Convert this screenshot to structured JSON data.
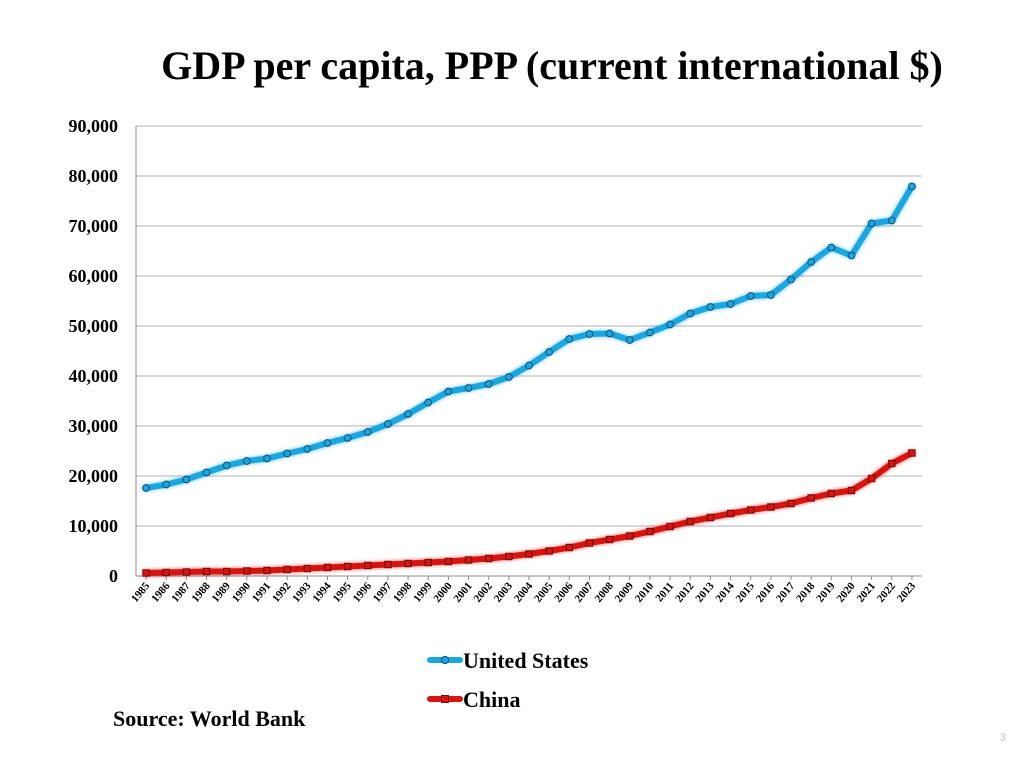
{
  "chart_data": {
    "type": "line",
    "title": "GDP per capita, PPP (current international $)",
    "xlabel": "",
    "ylabel": "",
    "ylim": [
      0,
      90000
    ],
    "yticks": [
      "0",
      "10,000",
      "20,000",
      "30,000",
      "40,000",
      "50,000",
      "60,000",
      "70,000",
      "80,000",
      "90,000"
    ],
    "categories": [
      "1985",
      "1986",
      "1987",
      "1988",
      "1989",
      "1990",
      "1991",
      "1992",
      "1993",
      "1994",
      "1995",
      "1996",
      "1997",
      "1998",
      "1999",
      "2000",
      "2001",
      "2002",
      "2003",
      "2004",
      "2005",
      "2006",
      "2007",
      "2008",
      "2009",
      "2010",
      "2011",
      "2012",
      "2013",
      "2014",
      "2015",
      "2016",
      "2017",
      "2018",
      "2019",
      "2020",
      "2021",
      "2022",
      "2023"
    ],
    "grid": true,
    "legend": "bottom-center",
    "series": [
      {
        "name": "United States",
        "color": "#1aa7e0",
        "marker": "circle",
        "values": [
          17600,
          18300,
          19300,
          20700,
          22100,
          23000,
          23500,
          24500,
          25400,
          26600,
          27600,
          28800,
          30400,
          32400,
          34700,
          36900,
          37600,
          38400,
          39800,
          42100,
          44800,
          47400,
          48400,
          48500,
          47200,
          48700,
          50300,
          52500,
          53800,
          54400,
          56000,
          56200,
          59300,
          62800,
          65700,
          64100,
          70500,
          71100,
          77900
        ]
      },
      {
        "name": "China",
        "color": "#d7140f",
        "marker": "square",
        "values": [
          600,
          700,
          800,
          900,
          900,
          1000,
          1100,
          1300,
          1500,
          1700,
          1900,
          2100,
          2300,
          2500,
          2700,
          2900,
          3200,
          3500,
          3900,
          4400,
          5000,
          5700,
          6600,
          7300,
          8000,
          8900,
          9900,
          10900,
          11700,
          12500,
          13200,
          13800,
          14500,
          15600,
          16500,
          17100,
          19500,
          22500,
          24600
        ]
      }
    ]
  },
  "source": "Source: World Bank",
  "page_number": "3"
}
